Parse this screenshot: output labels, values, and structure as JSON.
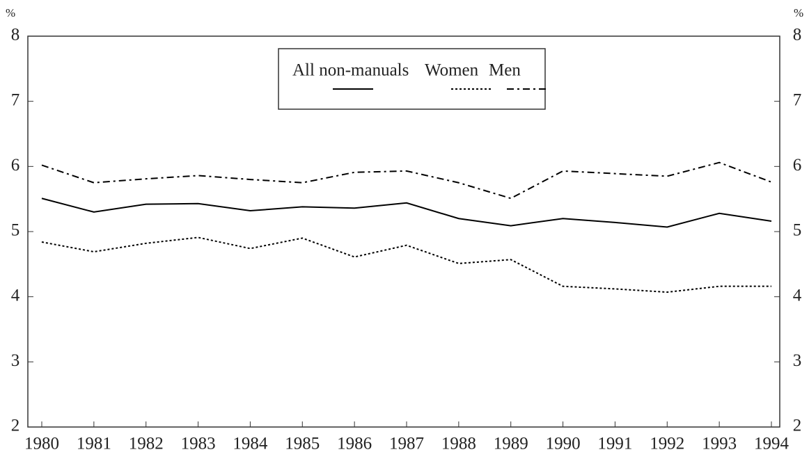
{
  "chart_data": {
    "type": "line",
    "y_label": "%",
    "y2_label": "%",
    "categories": [
      "1980",
      "1981",
      "1982",
      "1983",
      "1984",
      "1985",
      "1986",
      "1987",
      "1988",
      "1989",
      "1990",
      "1991",
      "1992",
      "1993",
      "1994"
    ],
    "series": [
      {
        "name": "All non-manuals",
        "color": "#000000",
        "dash": "solid",
        "values": [
          5.51,
          5.3,
          5.42,
          5.43,
          5.32,
          5.38,
          5.36,
          5.44,
          5.2,
          5.09,
          5.2,
          5.14,
          5.07,
          5.28,
          5.16
        ]
      },
      {
        "name": "Women",
        "color": "#000000",
        "dash": "dotted",
        "values": [
          4.84,
          4.69,
          4.82,
          4.91,
          4.74,
          4.9,
          4.61,
          4.79,
          4.51,
          4.57,
          4.16,
          4.12,
          4.07,
          4.16,
          4.16
        ]
      },
      {
        "name": "Men",
        "color": "#000000",
        "dash": "dashdot",
        "values": [
          6.02,
          5.75,
          5.81,
          5.86,
          5.8,
          5.75,
          5.91,
          5.93,
          5.75,
          5.51,
          5.93,
          5.89,
          5.85,
          6.06,
          5.76
        ]
      }
    ],
    "ylim": [
      2,
      8
    ],
    "yticks": [
      2,
      3,
      4,
      5,
      6,
      7,
      8
    ],
    "y2lim": [
      2,
      8
    ],
    "y2ticks": [
      2,
      3,
      4,
      5,
      6,
      7,
      8
    ],
    "grid": false,
    "legend": "top"
  }
}
